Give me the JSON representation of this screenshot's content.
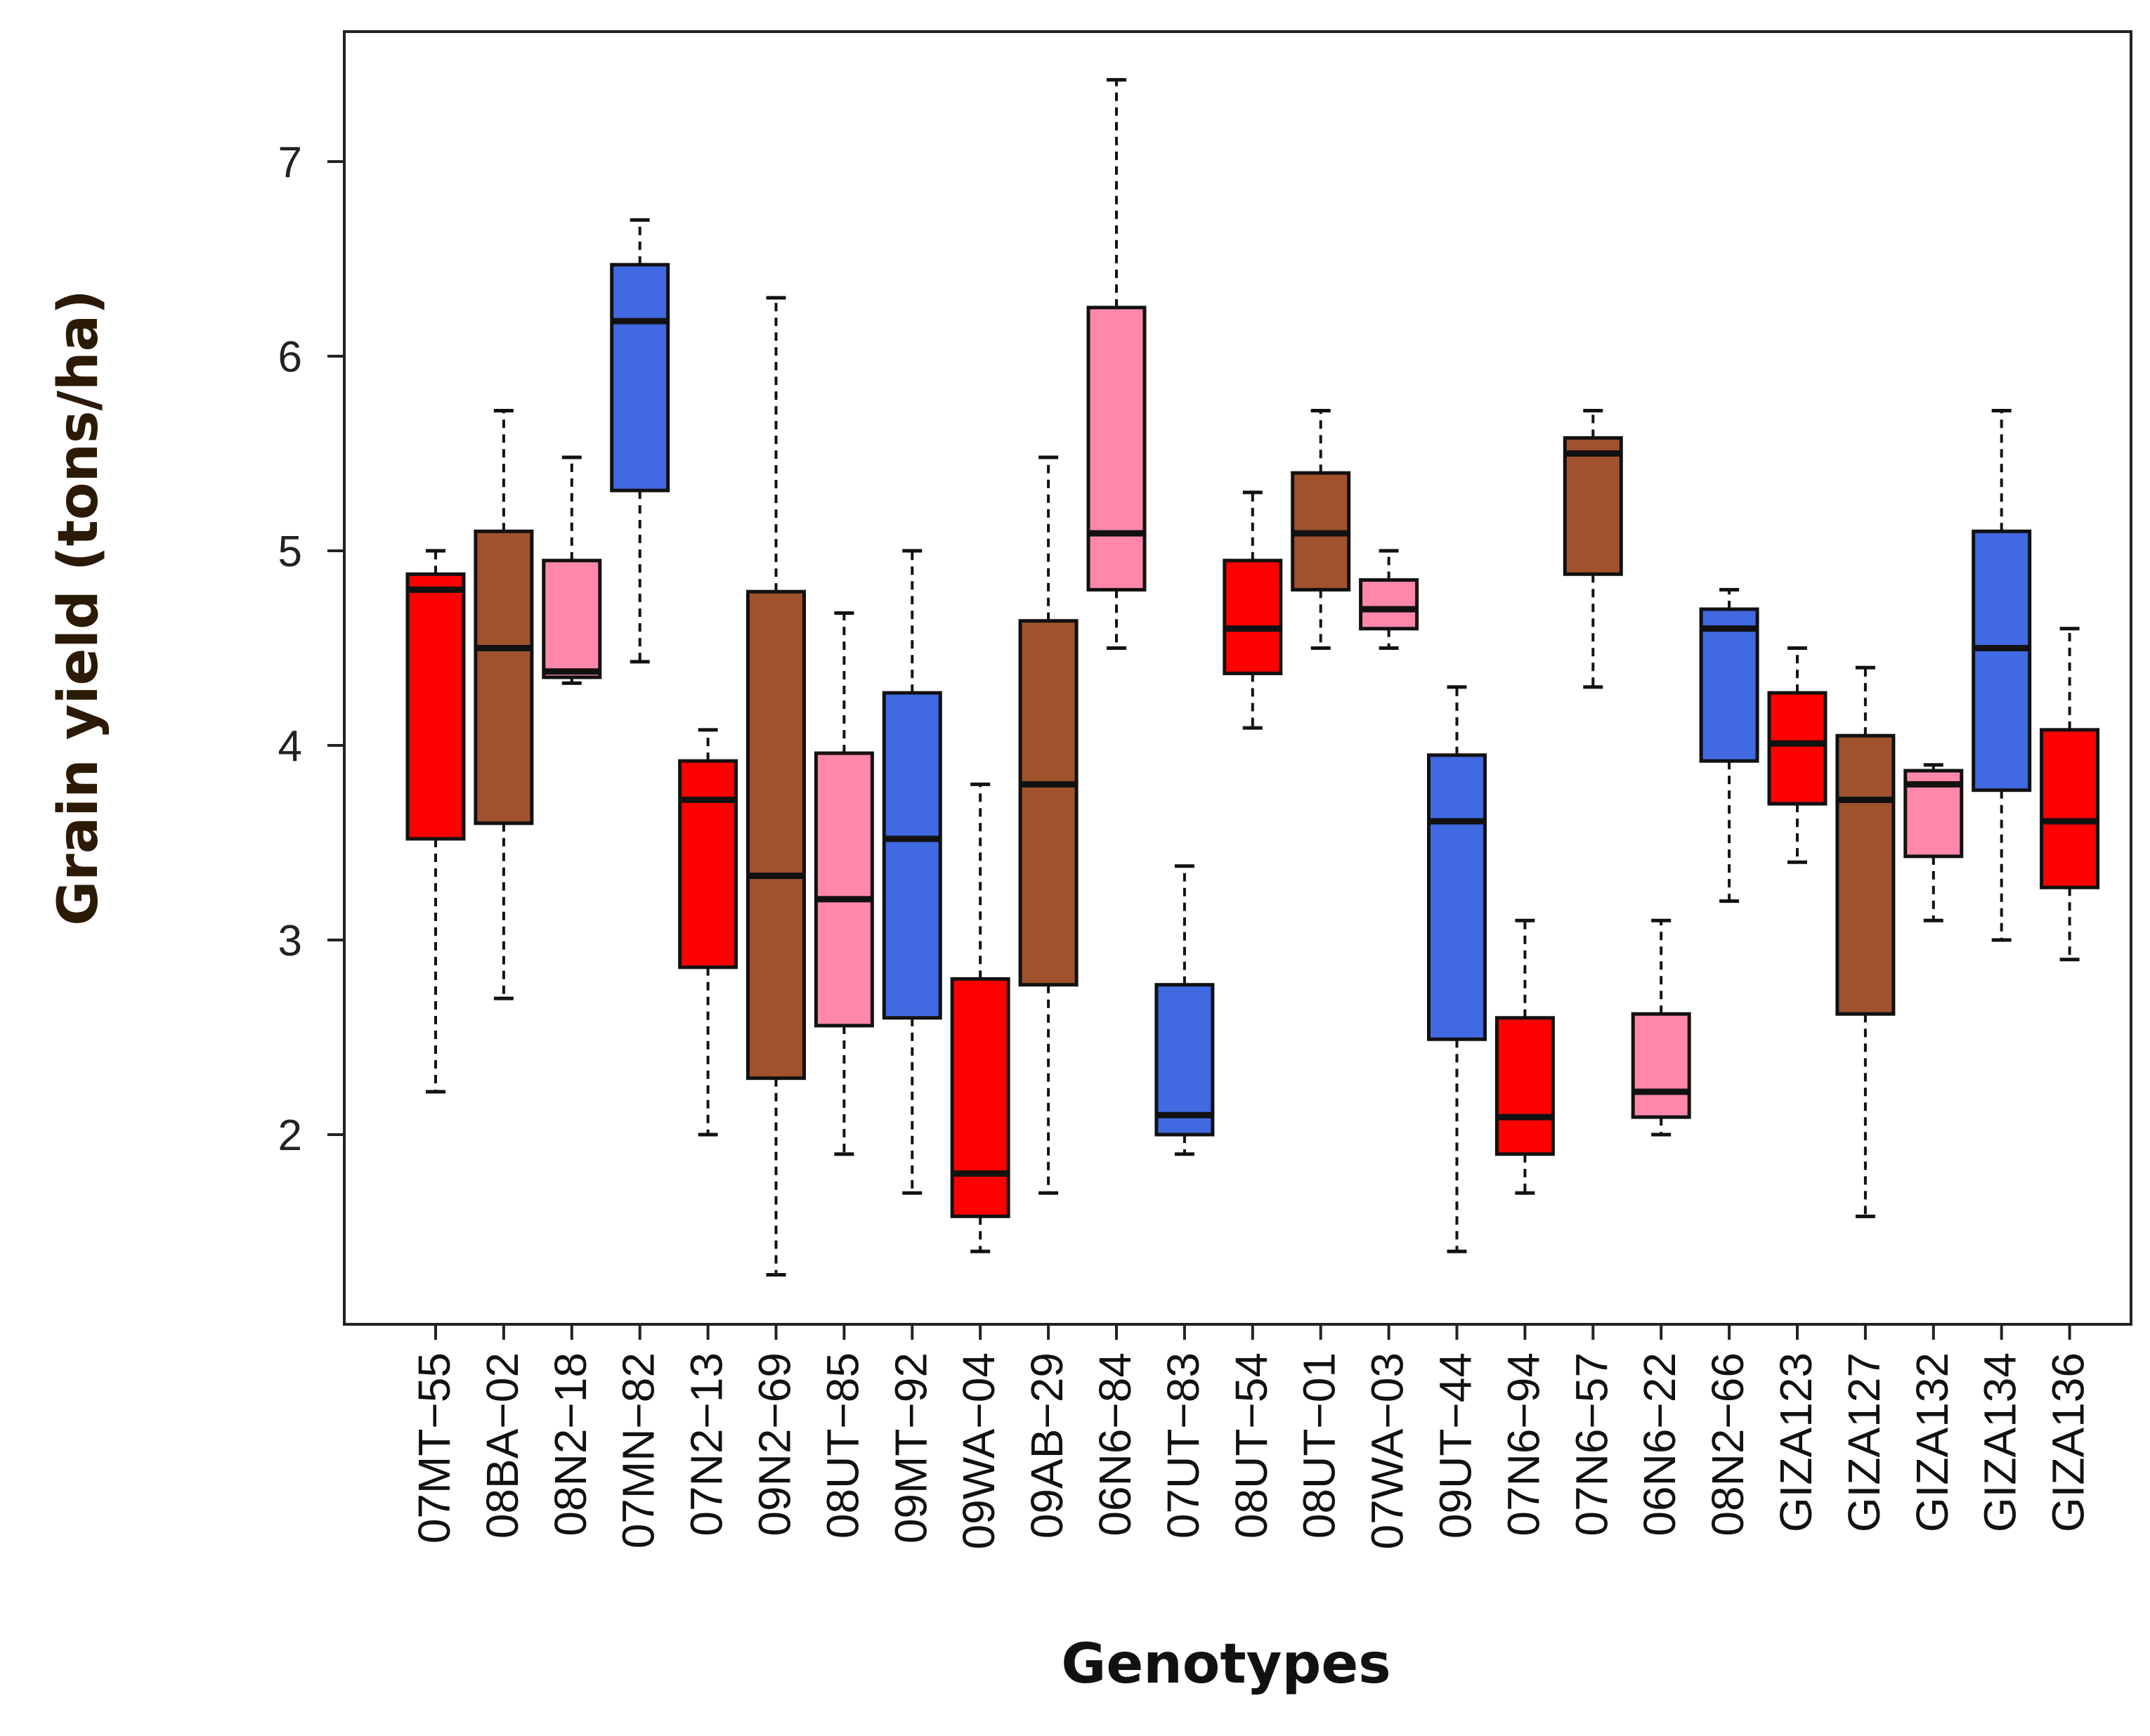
{
  "chart_data": {
    "type": "boxplot",
    "title": "",
    "xlabel": "Genotypes",
    "ylabel": "Grain yield (tons/ha)",
    "ylim": [
      1.0,
      7.7
    ],
    "yticks": [
      2,
      3,
      4,
      5,
      6,
      7
    ],
    "colors": {
      "red": "#ff0000",
      "brown": "#a0522d",
      "pink": "#ff88aa",
      "blue": "#4169e1",
      "axis": "#222222",
      "outline": "#111111"
    },
    "boxes": [
      {
        "label": "07MT−55",
        "min": 2.22,
        "q1": 3.52,
        "median": 4.8,
        "q3": 4.88,
        "max": 5.0,
        "color": "red"
      },
      {
        "label": "08BA−02",
        "min": 2.7,
        "q1": 3.6,
        "median": 4.5,
        "q3": 5.1,
        "max": 5.72,
        "color": "brown"
      },
      {
        "label": "08N2−18",
        "min": 4.32,
        "q1": 4.35,
        "median": 4.38,
        "q3": 4.95,
        "max": 5.48,
        "color": "pink"
      },
      {
        "label": "07MN−82",
        "min": 4.43,
        "q1": 5.31,
        "median": 6.18,
        "q3": 6.47,
        "max": 6.7,
        "color": "blue"
      },
      {
        "label": "07N2−13",
        "min": 2.0,
        "q1": 2.86,
        "median": 3.72,
        "q3": 3.92,
        "max": 4.08,
        "color": "red"
      },
      {
        "label": "09N2−69",
        "min": 1.28,
        "q1": 2.29,
        "median": 3.33,
        "q3": 4.79,
        "max": 6.3,
        "color": "brown"
      },
      {
        "label": "08UT−85",
        "min": 1.9,
        "q1": 2.56,
        "median": 3.21,
        "q3": 3.96,
        "max": 4.68,
        "color": "pink"
      },
      {
        "label": "09MT−92",
        "min": 1.7,
        "q1": 2.6,
        "median": 3.52,
        "q3": 4.27,
        "max": 5.0,
        "color": "blue"
      },
      {
        "label": "09WA−04",
        "min": 1.4,
        "q1": 1.58,
        "median": 1.8,
        "q3": 2.8,
        "max": 3.8,
        "color": "red"
      },
      {
        "label": "09AB−29",
        "min": 1.7,
        "q1": 2.77,
        "median": 3.8,
        "q3": 4.64,
        "max": 5.48,
        "color": "brown"
      },
      {
        "label": "06N6−84",
        "min": 4.5,
        "q1": 4.8,
        "median": 5.09,
        "q3": 6.25,
        "max": 7.42,
        "color": "pink"
      },
      {
        "label": "07UT−83",
        "min": 1.9,
        "q1": 2.0,
        "median": 2.1,
        "q3": 2.77,
        "max": 3.38,
        "color": "blue"
      },
      {
        "label": "08UT−54",
        "min": 4.09,
        "q1": 4.37,
        "median": 4.6,
        "q3": 4.95,
        "max": 5.3,
        "color": "red"
      },
      {
        "label": "08UT−01",
        "min": 4.5,
        "q1": 4.8,
        "median": 5.09,
        "q3": 5.4,
        "max": 5.72,
        "color": "brown"
      },
      {
        "label": "07WA−03",
        "min": 4.5,
        "q1": 4.6,
        "median": 4.7,
        "q3": 4.85,
        "max": 5.0,
        "color": "pink"
      },
      {
        "label": "09UT−44",
        "min": 1.4,
        "q1": 2.49,
        "median": 3.61,
        "q3": 3.95,
        "max": 4.3,
        "color": "blue"
      },
      {
        "label": "07N6−94",
        "min": 1.7,
        "q1": 1.9,
        "median": 2.09,
        "q3": 2.6,
        "max": 3.1,
        "color": "red"
      },
      {
        "label": "07N6−57",
        "min": 4.3,
        "q1": 4.88,
        "median": 5.5,
        "q3": 5.58,
        "max": 5.72,
        "color": "brown"
      },
      {
        "label": "06N6−22",
        "min": 2.0,
        "q1": 2.09,
        "median": 2.22,
        "q3": 2.62,
        "max": 3.1,
        "color": "pink"
      },
      {
        "label": "08N2−66",
        "min": 3.2,
        "q1": 3.92,
        "median": 4.6,
        "q3": 4.7,
        "max": 4.8,
        "color": "blue"
      },
      {
        "label": "GIZA123",
        "min": 3.4,
        "q1": 3.7,
        "median": 4.01,
        "q3": 4.27,
        "max": 4.5,
        "color": "red"
      },
      {
        "label": "GIZA127",
        "min": 1.58,
        "q1": 2.62,
        "median": 3.72,
        "q3": 4.05,
        "max": 4.4,
        "color": "brown"
      },
      {
        "label": "GIZA132",
        "min": 3.1,
        "q1": 3.43,
        "median": 3.8,
        "q3": 3.87,
        "max": 3.9,
        "color": "pink"
      },
      {
        "label": "GIZA134",
        "min": 3.0,
        "q1": 3.77,
        "median": 4.5,
        "q3": 5.1,
        "max": 5.72,
        "color": "blue"
      },
      {
        "label": "GIZA136",
        "min": 2.9,
        "q1": 3.27,
        "median": 3.61,
        "q3": 4.08,
        "max": 4.6,
        "color": "red"
      }
    ]
  }
}
